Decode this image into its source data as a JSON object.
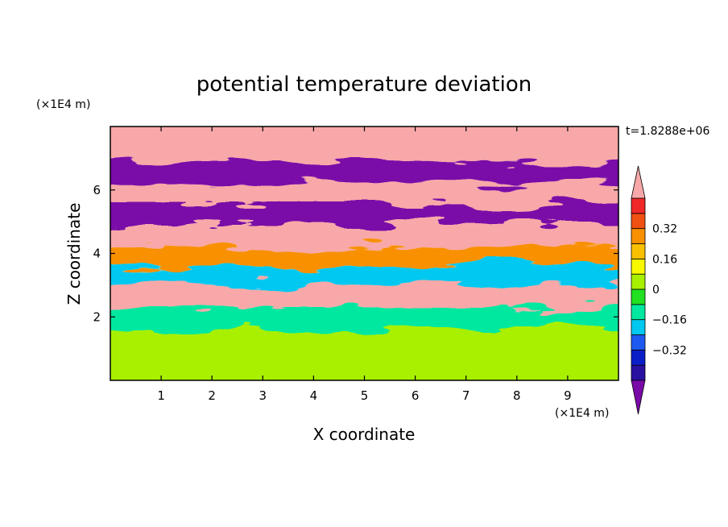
{
  "chart_data": {
    "type": "heatmap",
    "title": "potential temperature deviation",
    "xlabel": "X coordinate",
    "ylabel": "Z coordinate",
    "x_unit": "(×1E4 m)",
    "y_unit": "(×1E4 m)",
    "time_label": "t=1.8288e+06",
    "xlim": [
      0,
      10
    ],
    "ylim": [
      0,
      8
    ],
    "x_ticks": [
      "1",
      "2",
      "3",
      "4",
      "5",
      "6",
      "7",
      "8",
      "9"
    ],
    "y_ticks": [
      "2",
      "4",
      "6"
    ],
    "colorbar": {
      "levels": [
        -0.48,
        -0.4,
        -0.32,
        -0.24,
        -0.16,
        -0.08,
        0,
        0.08,
        0.16,
        0.24,
        0.32,
        0.4,
        0.48
      ],
      "colors": [
        "#7a0aa8",
        "#2a10a0",
        "#0a1ec8",
        "#1e5af0",
        "#00c8f0",
        "#00e8a0",
        "#20e020",
        "#a8f000",
        "#f8f800",
        "#f8c000",
        "#f89000",
        "#f05010",
        "#f02828",
        "#f8a8a8"
      ],
      "tick_labels": [
        "0.32",
        "0.16",
        "0",
        "-0.16",
        "-0.32"
      ],
      "tick_values": [
        0.32,
        0.16,
        0,
        -0.16,
        -0.32
      ],
      "extend": "both"
    },
    "layers": [
      {
        "z_range": [
          6.9,
          8.0
        ],
        "value": 0.5
      },
      {
        "z_range": [
          6.2,
          6.9
        ],
        "value": -0.5
      },
      {
        "z_range": [
          5.6,
          6.2
        ],
        "value": 0.5
      },
      {
        "z_range": [
          4.9,
          5.6
        ],
        "value": -0.5
      },
      {
        "z_range": [
          4.2,
          4.9
        ],
        "value": 0.5
      },
      {
        "z_range": [
          3.6,
          4.2
        ],
        "value": 0.3
      },
      {
        "z_range": [
          3.0,
          3.6
        ],
        "value": -0.2
      },
      {
        "z_range": [
          2.3,
          3.0
        ],
        "value": 0.5
      },
      {
        "z_range": [
          1.6,
          2.3
        ],
        "value": -0.1
      },
      {
        "z_range": [
          0.0,
          1.6
        ],
        "value": 0.0
      }
    ]
  }
}
